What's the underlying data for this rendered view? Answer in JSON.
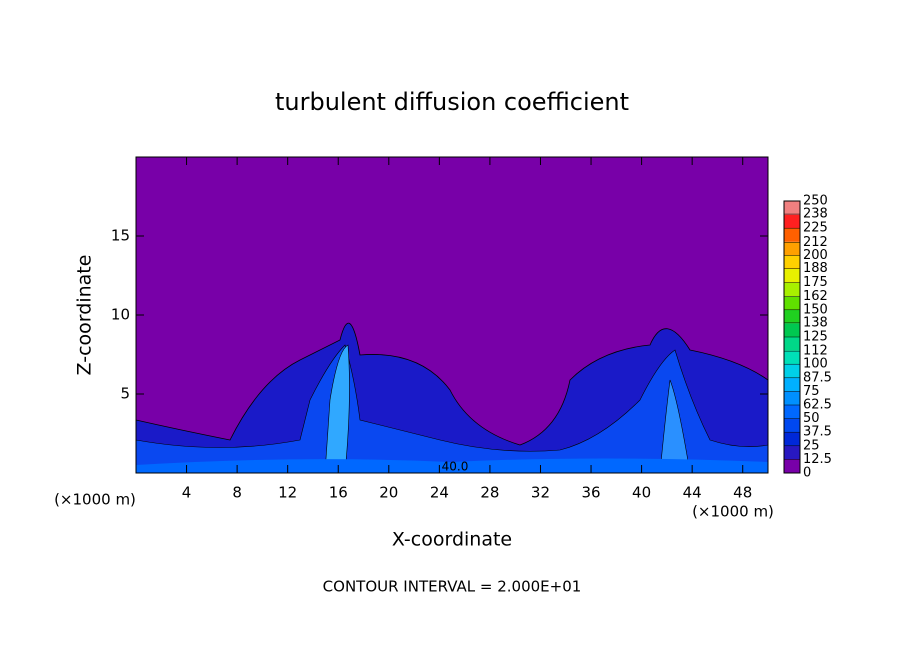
{
  "chart_data": {
    "type": "contour",
    "title": "turbulent diffusion coefficient",
    "x_label": "X-coordinate",
    "y_label": "Z-coordinate",
    "x_unit_left": "(×1000 m)",
    "x_unit_right": "(×1000 m)",
    "footnote": "CONTOUR INTERVAL = 2.000E+01",
    "contour_label": "40.0",
    "xlim": [
      0,
      50
    ],
    "xticks": [
      4,
      8,
      12,
      16,
      20,
      24,
      28,
      32,
      36,
      40,
      44,
      48
    ],
    "ylim": [
      0,
      20
    ],
    "yticks": [
      5,
      10,
      15
    ],
    "clim": [
      0,
      250
    ],
    "cticks": [
      0,
      12.5,
      25,
      37.5,
      50,
      62.5,
      75,
      87.5,
      100,
      112,
      125,
      138,
      150,
      162,
      175,
      188,
      200,
      212,
      225,
      238,
      250
    ],
    "colors": [
      "#7800a8",
      "#2818c0",
      "#0028d8",
      "#0048f0",
      "#0068ff",
      "#0090ff",
      "#00b0ff",
      "#00d0e8",
      "#00e0b8",
      "#00d888",
      "#00c850",
      "#20d020",
      "#60e000",
      "#a8f000",
      "#e8f000",
      "#ffd000",
      "#ffa000",
      "#ff6000",
      "#ff2020",
      "#f08080"
    ]
  }
}
